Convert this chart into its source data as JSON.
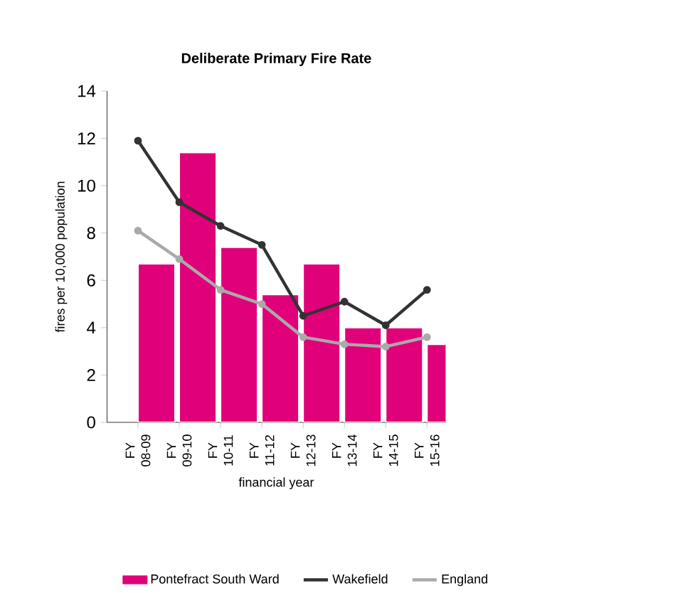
{
  "chart_data": {
    "type": "bar",
    "title": "Deliberate Primary Fire Rate",
    "xlabel": "financial year",
    "ylabel": "fires per 10,000 population",
    "categories": [
      "FY 08-09",
      "FY 09-10",
      "FY 10-11",
      "FY 11-12",
      "FY 12-13",
      "FY 13-14",
      "FY 14-15",
      "FY 15-16"
    ],
    "series": [
      {
        "name": "Pontefract South Ward",
        "color": "#e0007a",
        "values": [
          6.7,
          11.4,
          7.4,
          5.4,
          6.7,
          4.0,
          4.0,
          3.3
        ]
      },
      {
        "name": "Wakefield",
        "type": "line",
        "color": "#333333",
        "marker": "circle",
        "values": [
          11.9,
          9.3,
          8.3,
          7.5,
          4.5,
          5.1,
          4.1,
          5.6
        ]
      },
      {
        "name": "England",
        "type": "line",
        "color": "#aaaaaa",
        "marker": "circle",
        "values": [
          8.1,
          6.9,
          5.6,
          5.0,
          3.6,
          3.3,
          3.2,
          3.6
        ]
      }
    ],
    "ylim": [
      0,
      14
    ],
    "yticks": [
      0,
      2,
      4,
      6,
      8,
      10,
      12,
      14
    ],
    "grid": false,
    "legend": "bottom"
  }
}
